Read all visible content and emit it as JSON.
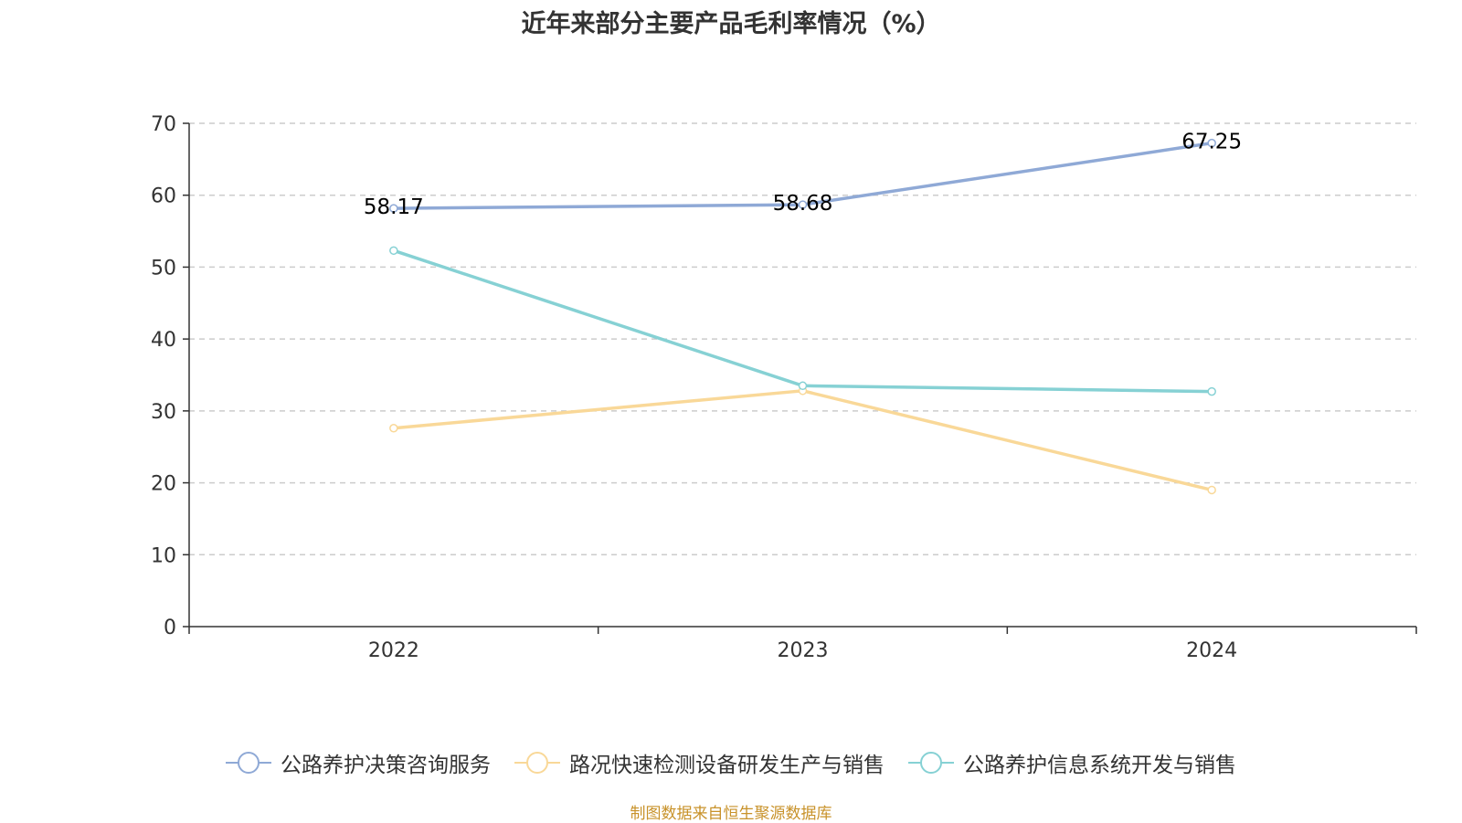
{
  "title": "近年来部分主要产品毛利率情况（%）",
  "source_note": "制图数据来自恒生聚源数据库",
  "chart_data": {
    "type": "line",
    "title": "近年来部分主要产品毛利率情况（%）",
    "categories": [
      "2022",
      "2023",
      "2024"
    ],
    "ylim": [
      0,
      70
    ],
    "yticks": [
      0,
      10,
      20,
      30,
      40,
      50,
      60,
      70
    ],
    "grid": true,
    "legend_position": "bottom",
    "series": [
      {
        "name": "公路养护决策咨询服务",
        "values": [
          58.17,
          58.68,
          67.25
        ],
        "color": "#8fa9d6",
        "labels": [
          "58.17",
          "58.68",
          "67.25"
        ]
      },
      {
        "name": "路况快速检测设备研发生产与销售",
        "values": [
          27.6,
          32.8,
          19.0
        ],
        "color": "#f9d898"
      },
      {
        "name": "公路养护信息系统开发与销售",
        "values": [
          52.3,
          33.5,
          32.7
        ],
        "color": "#86d1d4"
      }
    ]
  }
}
